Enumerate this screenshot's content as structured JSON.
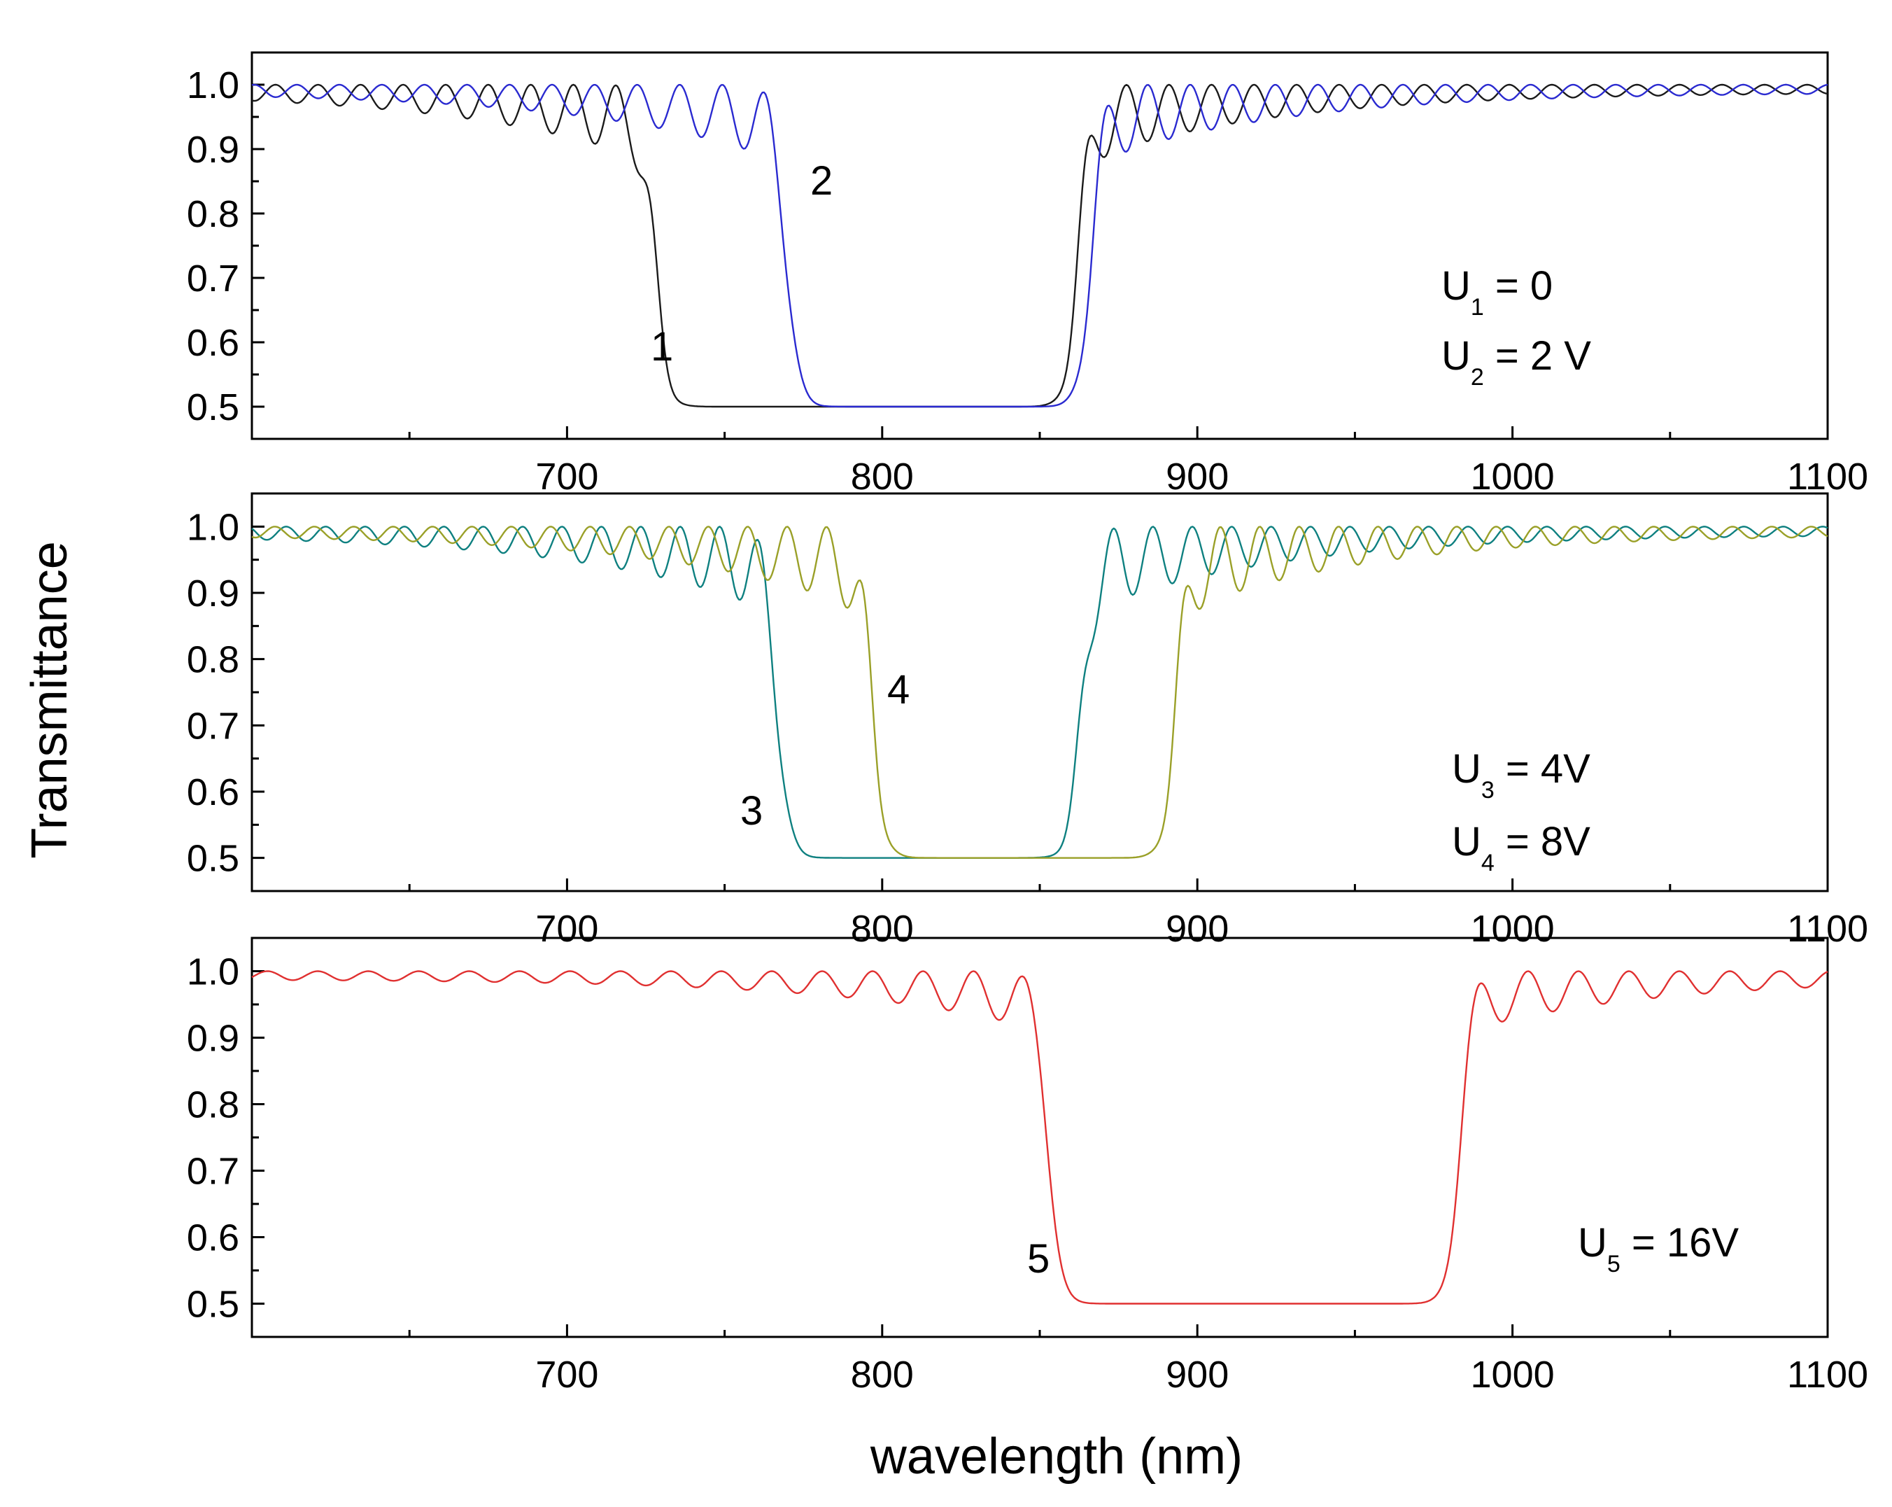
{
  "chart_data": {
    "type": "line",
    "xlabel": "wavelength (nm)",
    "ylabel": "Transmittance",
    "xlim": [
      600,
      1100
    ],
    "ylim": [
      0.45,
      1.05
    ],
    "xticks": [
      "700",
      "800",
      "900",
      "1000",
      "1100"
    ],
    "yticks": [
      "0.5",
      "0.6",
      "0.7",
      "0.8",
      "0.9",
      "1.0"
    ],
    "panels": [
      {
        "name": "panel-1",
        "series": [
          {
            "name": "1",
            "color": "#1a1a1a",
            "center": 795,
            "half": 67,
            "period": 13.5,
            "phase": 0,
            "osc_amp": 0.11
          },
          {
            "name": "2",
            "color": "#2a2ad0",
            "center": 818,
            "half": 48,
            "period": 13.5,
            "phase": 3.14,
            "osc_amp": 0.11
          }
        ],
        "curve_labels": [
          "1",
          "2"
        ],
        "voltages": [
          {
            "sym": "U",
            "sub": "1",
            "rest": " = 0"
          },
          {
            "sym": "U",
            "sub": "2",
            "rest": " = 2 V"
          }
        ]
      },
      {
        "name": "panel-2",
        "series": [
          {
            "name": "3",
            "color": "#0e8080",
            "center": 815,
            "half": 48,
            "period": 12.5,
            "phase": 0.8,
            "osc_amp": 0.12
          },
          {
            "name": "4",
            "color": "#9aa028",
            "center": 845,
            "half": 48,
            "period": 12.5,
            "phase": 2.6,
            "osc_amp": 0.12
          }
        ],
        "curve_labels": [
          "3",
          "4"
        ],
        "voltages": [
          {
            "sym": "U",
            "sub": "3",
            "rest": " = 4V"
          },
          {
            "sym": "U",
            "sub": "4",
            "rest": " = 8V"
          }
        ]
      },
      {
        "name": "panel-3",
        "series": [
          {
            "name": "5",
            "color": "#e03030",
            "center": 918,
            "half": 65,
            "period": 16,
            "phase": 1.2,
            "osc_amp": 0.08
          }
        ],
        "curve_labels": [
          "5"
        ],
        "voltages": [
          {
            "sym": "U",
            "sub": "5",
            "rest": " = 16V"
          }
        ]
      }
    ]
  }
}
